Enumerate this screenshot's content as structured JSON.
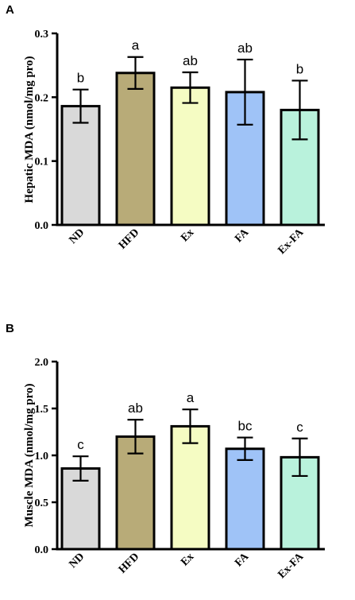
{
  "chart_data": [
    {
      "type": "bar",
      "panel": "A",
      "ylabel": "Hepatic MDA (nmol/mg pro)",
      "ylim": [
        0,
        0.3
      ],
      "yticks": [
        "0.0",
        "0.1",
        "0.2",
        "0.3"
      ],
      "categories": [
        "ND",
        "HFD",
        "Ex",
        "FA",
        "Ex-FA"
      ],
      "values": [
        0.186,
        0.238,
        0.215,
        0.208,
        0.18
      ],
      "errors": [
        0.026,
        0.025,
        0.024,
        0.051,
        0.046
      ],
      "significance": [
        "b",
        "a",
        "ab",
        "ab",
        "b"
      ],
      "colors": [
        "#d9d9d9",
        "#b8ab78",
        "#f5fcc3",
        "#9fc3f7",
        "#b9f2dc"
      ]
    },
    {
      "type": "bar",
      "panel": "B",
      "ylabel": "Muscle MDA (nmol/mg pro)",
      "ylim": [
        0,
        2.0
      ],
      "yticks": [
        "0.0",
        "0.5",
        "1.0",
        "1.5",
        "2.0"
      ],
      "categories": [
        "ND",
        "HFD",
        "Ex",
        "FA",
        "Ex-FA"
      ],
      "values": [
        0.86,
        1.2,
        1.31,
        1.07,
        0.98
      ],
      "errors": [
        0.13,
        0.18,
        0.18,
        0.12,
        0.2
      ],
      "significance": [
        "c",
        "ab",
        "a",
        "bc",
        "c"
      ],
      "colors": [
        "#d9d9d9",
        "#b8ab78",
        "#f5fcc3",
        "#9fc3f7",
        "#b9f2dc"
      ]
    }
  ]
}
